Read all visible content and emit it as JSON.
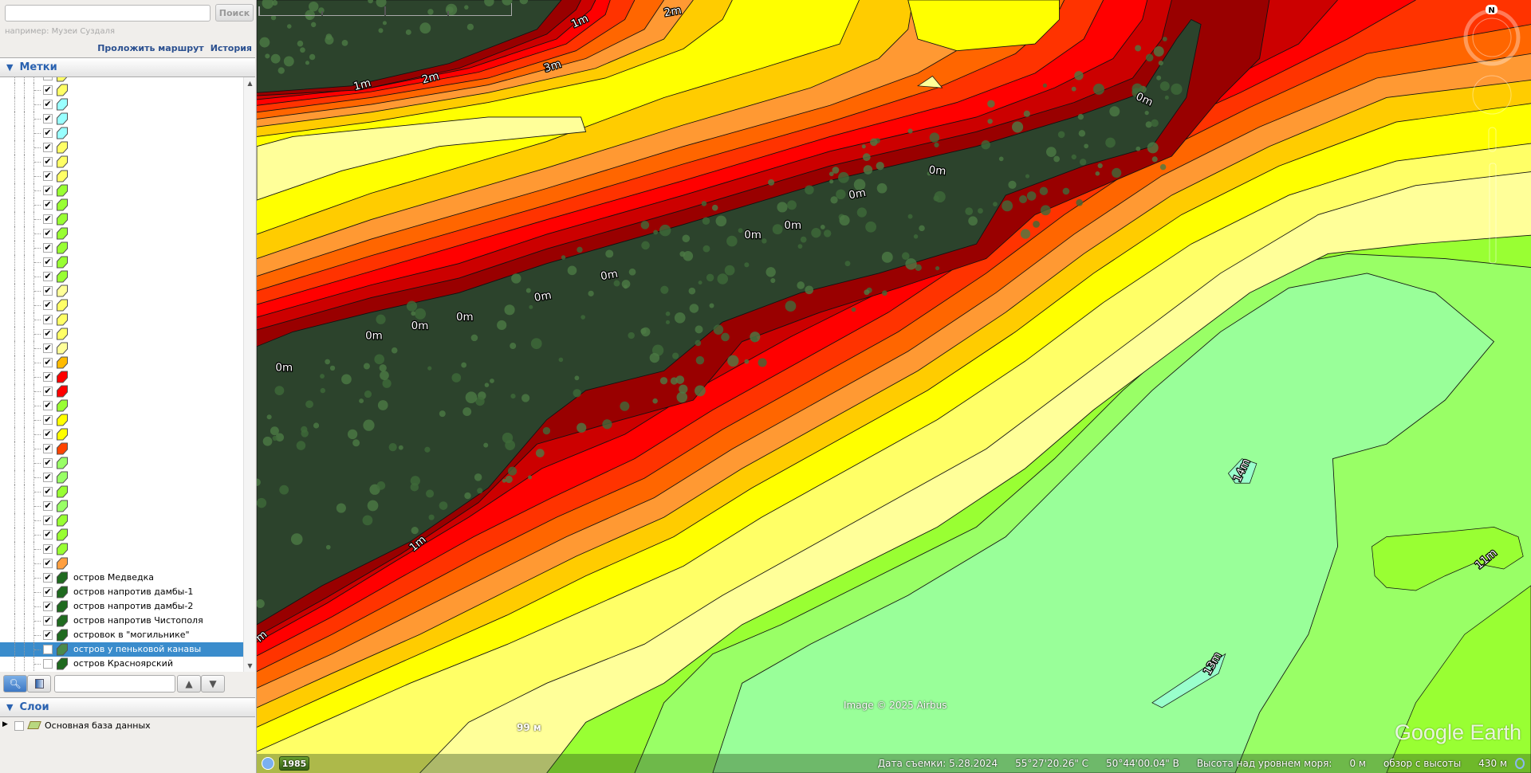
{
  "search": {
    "value": "",
    "placeholder": "",
    "button": "Поиск",
    "hint": "например: Музеи Суздаля"
  },
  "links": {
    "route": "Проложить маршрут",
    "history": "История"
  },
  "places": {
    "title": "Метки"
  },
  "layers": {
    "title": "Слои",
    "items": [
      {
        "label": "Основная база данных",
        "checked": false
      }
    ]
  },
  "tree_items": [
    {
      "color": "#ffff66",
      "checked": true
    },
    {
      "color": "#ffff66",
      "checked": true
    },
    {
      "color": "#99ffff",
      "checked": true
    },
    {
      "color": "#99ffff",
      "checked": true
    },
    {
      "color": "#99ffff",
      "checked": true
    },
    {
      "color": "#ffff66",
      "checked": true
    },
    {
      "color": "#ffff66",
      "checked": true
    },
    {
      "color": "#ffff66",
      "checked": true
    },
    {
      "color": "#99ff33",
      "checked": true
    },
    {
      "color": "#99ff33",
      "checked": true
    },
    {
      "color": "#99ff33",
      "checked": true
    },
    {
      "color": "#99ff33",
      "checked": true
    },
    {
      "color": "#99ff33",
      "checked": true
    },
    {
      "color": "#99ff33",
      "checked": true
    },
    {
      "color": "#99ff33",
      "checked": true
    },
    {
      "color": "#ffff99",
      "checked": true
    },
    {
      "color": "#ffff66",
      "checked": true
    },
    {
      "color": "#ffff66",
      "checked": true
    },
    {
      "color": "#ffff66",
      "checked": true
    },
    {
      "color": "#ffff99",
      "checked": true
    },
    {
      "color": "#ffbb00",
      "checked": true
    },
    {
      "color": "#ff0000",
      "checked": true
    },
    {
      "color": "#ff0000",
      "checked": true
    },
    {
      "color": "#99ff33",
      "checked": true
    },
    {
      "color": "#ffff00",
      "checked": true
    },
    {
      "color": "#ffff00",
      "checked": true
    },
    {
      "color": "#ff4400",
      "checked": true
    },
    {
      "color": "#99ff66",
      "checked": true
    },
    {
      "color": "#99ff66",
      "checked": true
    },
    {
      "color": "#99ff33",
      "checked": true
    },
    {
      "color": "#99ff66",
      "checked": true
    },
    {
      "color": "#99ff33",
      "checked": true
    },
    {
      "color": "#99ff33",
      "checked": true
    },
    {
      "color": "#99ff33",
      "checked": true
    },
    {
      "color": "#ff9f40",
      "checked": true
    },
    {
      "color": "#1f6a1f",
      "checked": true,
      "label": "остров Медведка"
    },
    {
      "color": "#1f6a1f",
      "checked": true,
      "label": "остров напротив дамбы-1"
    },
    {
      "color": "#1f6a1f",
      "checked": true,
      "label": "остров напротив дамбы-2"
    },
    {
      "color": "#1f6a1f",
      "checked": true,
      "label": "остров напротив Чистополя"
    },
    {
      "color": "#1f6a1f",
      "checked": true,
      "label": "островок в \"могильнике\""
    },
    {
      "color": "#4a8a4a",
      "checked": false,
      "label": "остров у пеньковой канавы",
      "selected": true
    },
    {
      "color": "#1f6a1f",
      "checked": false,
      "label": "остров Красноярский"
    }
  ],
  "map": {
    "contour_labels": [
      "1m",
      "2m",
      "3m",
      "1m",
      "2m",
      "0m",
      "0m",
      "0m",
      "0m",
      "0m",
      "0m",
      "0m",
      "0m",
      "0m",
      "0m",
      "0m",
      "1m",
      "11m",
      "14m",
      "13m",
      "m"
    ],
    "band_colors": {
      "lake": "#99ff99",
      "green": "#99ff66",
      "bright_green": "#99ff33",
      "pale_yellow": "#ffff99",
      "light_yellow": "#ffff66",
      "yellow": "#ffff00",
      "amber": "#ffcc00",
      "orange": "#ff9933",
      "dark_orange": "#ff6600",
      "orange_red": "#ff3300",
      "red": "#ff0000",
      "crimson": "#cc0000",
      "dark_red": "#990000",
      "pond": "#99ffcc",
      "imagery": "#2c432c"
    },
    "compass_label": "N",
    "scale_label": "99 м",
    "year": "1985",
    "credit": "Image © 2025 Airbus",
    "watermark": "Google Earth"
  },
  "status": {
    "date": "Дата съемки: 5.28.2024",
    "lat": "55°27'20.26\" С",
    "lon": "50°44'00.04\" В",
    "elev_label": "Высота над уровнем моря:",
    "elev": "0 м",
    "eye_label": "обзор с высоты",
    "eye": "430 м"
  }
}
